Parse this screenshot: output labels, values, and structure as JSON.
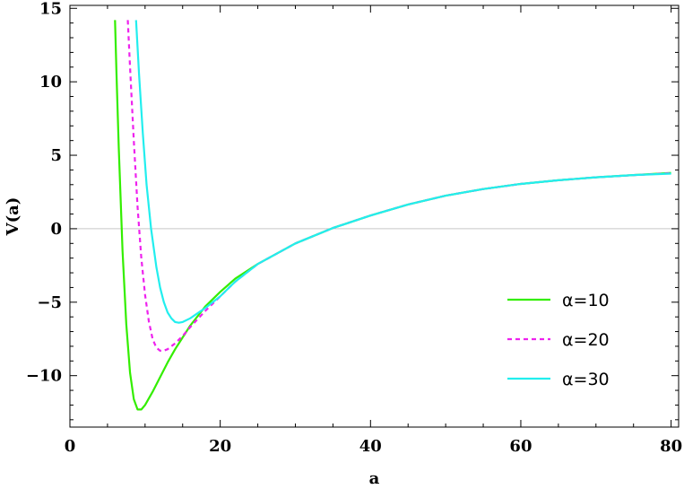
{
  "chart_data": {
    "type": "line",
    "xlabel": "a",
    "ylabel": "V(a)",
    "xlim": [
      0,
      81
    ],
    "ylim": [
      -13.5,
      15.2
    ],
    "xticks": [
      0,
      20,
      40,
      60,
      80
    ],
    "yticks": [
      -10,
      -5,
      0,
      5,
      10,
      15
    ],
    "xtick_labels": [
      "0",
      "20",
      "40",
      "60",
      "80"
    ],
    "ytick_labels": [
      "−10",
      "−5",
      "0",
      "5",
      "10",
      "15"
    ],
    "grid": false,
    "zero_line": true,
    "legend_position": "bottom-right",
    "series": [
      {
        "name": "α=10",
        "color": "#33ee00",
        "dash": "solid",
        "points": [
          [
            6.0,
            14.2
          ],
          [
            6.2,
            10.5
          ],
          [
            6.5,
            5.5
          ],
          [
            7.0,
            -1.5
          ],
          [
            7.5,
            -6.5
          ],
          [
            8.0,
            -9.8
          ],
          [
            8.5,
            -11.6
          ],
          [
            9.0,
            -12.3
          ],
          [
            9.5,
            -12.3
          ],
          [
            10,
            -12.0
          ],
          [
            11,
            -11.1
          ],
          [
            12,
            -10.1
          ],
          [
            13,
            -9.1
          ],
          [
            14,
            -8.2
          ],
          [
            16,
            -6.6
          ],
          [
            18,
            -5.3
          ],
          [
            20,
            -4.3
          ],
          [
            22,
            -3.4
          ],
          [
            25,
            -2.4
          ],
          [
            30,
            -1.0
          ],
          [
            35,
            0.05
          ],
          [
            40,
            0.9
          ],
          [
            45,
            1.65
          ],
          [
            50,
            2.25
          ],
          [
            55,
            2.7
          ],
          [
            60,
            3.05
          ],
          [
            65,
            3.3
          ],
          [
            70,
            3.5
          ],
          [
            75,
            3.65
          ],
          [
            80,
            3.8
          ]
        ]
      },
      {
        "name": "α=20",
        "color": "#ee22ee",
        "dash": "dashed",
        "points": [
          [
            7.7,
            14.2
          ],
          [
            8.0,
            11.0
          ],
          [
            8.5,
            6.0
          ],
          [
            9.0,
            1.5
          ],
          [
            9.5,
            -2.0
          ],
          [
            10,
            -4.5
          ],
          [
            10.5,
            -6.3
          ],
          [
            11,
            -7.5
          ],
          [
            11.5,
            -8.1
          ],
          [
            12,
            -8.3
          ],
          [
            12.5,
            -8.3
          ],
          [
            13,
            -8.2
          ],
          [
            14,
            -7.8
          ],
          [
            15,
            -7.3
          ],
          [
            16,
            -6.7
          ],
          [
            18,
            -5.6
          ],
          [
            20,
            -4.6
          ],
          [
            22,
            -3.6
          ],
          [
            25,
            -2.4
          ],
          [
            30,
            -1.0
          ],
          [
            35,
            0.05
          ],
          [
            40,
            0.9
          ],
          [
            45,
            1.65
          ],
          [
            50,
            2.25
          ],
          [
            55,
            2.7
          ],
          [
            60,
            3.05
          ],
          [
            65,
            3.3
          ],
          [
            70,
            3.5
          ],
          [
            75,
            3.65
          ],
          [
            80,
            3.78
          ]
        ]
      },
      {
        "name": "α=30",
        "color": "#22eeee",
        "dash": "solid",
        "points": [
          [
            8.8,
            14.2
          ],
          [
            9.2,
            10.5
          ],
          [
            9.7,
            6.5
          ],
          [
            10.2,
            3.0
          ],
          [
            10.8,
            0.0
          ],
          [
            11.5,
            -2.6
          ],
          [
            12,
            -4.0
          ],
          [
            12.5,
            -5.0
          ],
          [
            13,
            -5.7
          ],
          [
            13.5,
            -6.1
          ],
          [
            14,
            -6.35
          ],
          [
            14.5,
            -6.4
          ],
          [
            15,
            -6.35
          ],
          [
            16,
            -6.1
          ],
          [
            17,
            -5.75
          ],
          [
            18,
            -5.4
          ],
          [
            20,
            -4.6
          ],
          [
            22,
            -3.6
          ],
          [
            25,
            -2.4
          ],
          [
            30,
            -1.0
          ],
          [
            35,
            0.05
          ],
          [
            40,
            0.9
          ],
          [
            45,
            1.65
          ],
          [
            50,
            2.25
          ],
          [
            55,
            2.7
          ],
          [
            60,
            3.05
          ],
          [
            65,
            3.3
          ],
          [
            70,
            3.5
          ],
          [
            75,
            3.65
          ],
          [
            80,
            3.75
          ]
        ]
      }
    ]
  }
}
